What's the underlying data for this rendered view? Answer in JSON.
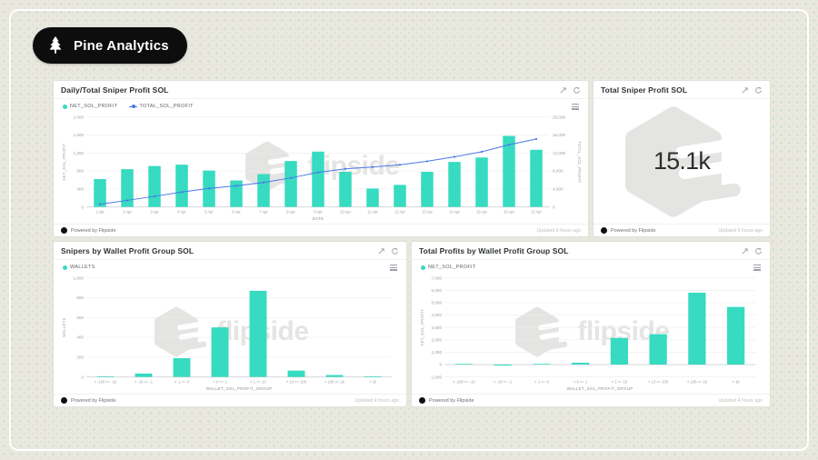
{
  "brand": {
    "name": "Pine Analytics"
  },
  "colors": {
    "bar_teal": "#36DBC1",
    "line_blue": "#4A78E8",
    "watermark_gray": "#E4E4E2",
    "badge_black": "#0D0D0D"
  },
  "watermark_text": "flipside",
  "panels": [
    {
      "title": "Daily/Total Sniper Profit SOL",
      "legend": [
        {
          "label": "NET_SOL_PROFIT",
          "color": "#36DBC1"
        },
        {
          "label": "TOTAL_SOL_PROFIT",
          "color": "#4A78E8"
        }
      ],
      "footer": {
        "powered": "Powered by Flipside",
        "updated": "Updated 6 hours ago"
      }
    },
    {
      "title": "Total Sniper Profit SOL",
      "big_number": "15.1k",
      "footer": {
        "powered": "Powered by Flipside",
        "updated": "Updated 6 hours ago"
      }
    },
    {
      "title": "Snipers by Wallet Profit Group SOL",
      "legend": [
        {
          "label": "WALLETS",
          "color": "#36DBC1"
        }
      ],
      "footer": {
        "powered": "Powered by Flipside",
        "updated": "Updated 4 hours ago"
      }
    },
    {
      "title": "Total Profits by Wallet Profit Group SOL",
      "legend": [
        {
          "label": "NET_SOL_PROFIT",
          "color": "#36DBC1"
        }
      ],
      "footer": {
        "powered": "Powered by Flipside",
        "updated": "Updated 4 hours ago"
      }
    }
  ],
  "chart_data": [
    {
      "id": "daily-total",
      "type": "bar",
      "categories": [
        "1 Apr",
        "2 Apr",
        "3 Apr",
        "4 Apr",
        "5 Apr",
        "6 Apr",
        "7 Apr",
        "8 Apr",
        "9 Apr",
        "10 Apr",
        "11 Apr",
        "12 Apr",
        "13 Apr",
        "14 Apr",
        "15 Apr",
        "16 Apr",
        "17 Apr"
      ],
      "series": [
        {
          "name": "NET_SOL_PROFIT",
          "type": "bar",
          "axis": "left",
          "color": "#36DBC1",
          "values": [
            620,
            840,
            910,
            940,
            810,
            590,
            730,
            1020,
            1230,
            780,
            410,
            490,
            780,
            1000,
            1100,
            1580,
            1270
          ]
        },
        {
          "name": "TOTAL_SOL_PROFIT",
          "type": "line",
          "axis": "right",
          "color": "#4A78E8",
          "values": [
            620,
            1460,
            2370,
            3310,
            4120,
            4710,
            5440,
            6460,
            7690,
            8470,
            8880,
            9370,
            10150,
            11150,
            12250,
            13830,
            15100
          ]
        }
      ],
      "left_axis": {
        "label": "NET_SOL_PROFIT",
        "min": 0,
        "max": 2000,
        "ticks": [
          0,
          400,
          800,
          1200,
          1600,
          2000
        ]
      },
      "right_axis": {
        "label": "TOTAL_SOL_PROFIT",
        "min": 0,
        "max": 20000,
        "ticks": [
          0,
          4000,
          8000,
          12000,
          16000,
          20000
        ]
      },
      "xlabel": "DATE",
      "legend_position": "top-left",
      "grid": true
    },
    {
      "id": "big-number",
      "type": "single-value",
      "title": "Total Sniper Profit SOL",
      "value": 15100,
      "display": "15.1k"
    },
    {
      "id": "snipers-by-group",
      "type": "bar",
      "categories": [
        "> -100 <= -10",
        "> -10 <= -1",
        "> -1 <= 0",
        "> 0 <= 1",
        "> 1 <= 10",
        "> 10 <= 100",
        "> 100 <= 1k",
        "> 1k"
      ],
      "series": [
        {
          "name": "WALLETS",
          "type": "bar",
          "axis": "left",
          "color": "#36DBC1",
          "values": [
            2,
            35,
            190,
            500,
            870,
            65,
            20,
            2
          ]
        }
      ],
      "left_axis": {
        "label": "WALLETS",
        "min": 0,
        "max": 1000,
        "ticks": [
          0,
          200,
          400,
          600,
          800,
          1000
        ]
      },
      "xlabel": "WALLET_SOL_PROFIT_GROUP",
      "legend_position": "top-left",
      "grid": true
    },
    {
      "id": "profits-by-group",
      "type": "bar",
      "categories": [
        "> -100 <= -10",
        "> -10 <= -1",
        "> -1 <= 0",
        "> 0 <= 1",
        "> 1 <= 10",
        "> 10 <= 100",
        "> 100 <= 1k",
        "> 1k"
      ],
      "series": [
        {
          "name": "NET_SOL_PROFIT",
          "type": "bar",
          "axis": "left",
          "color": "#36DBC1",
          "values": [
            5,
            -80,
            3,
            150,
            2150,
            2450,
            5800,
            4650
          ]
        }
      ],
      "left_axis": {
        "label": "NET_SOL_PROFIT",
        "min": -1000,
        "max": 7000,
        "ticks": [
          -1000,
          0,
          1000,
          2000,
          3000,
          4000,
          5000,
          6000,
          7000
        ]
      },
      "xlabel": "WALLET_SOL_PROFIT_GROUP",
      "legend_position": "top-left",
      "grid": true
    }
  ]
}
